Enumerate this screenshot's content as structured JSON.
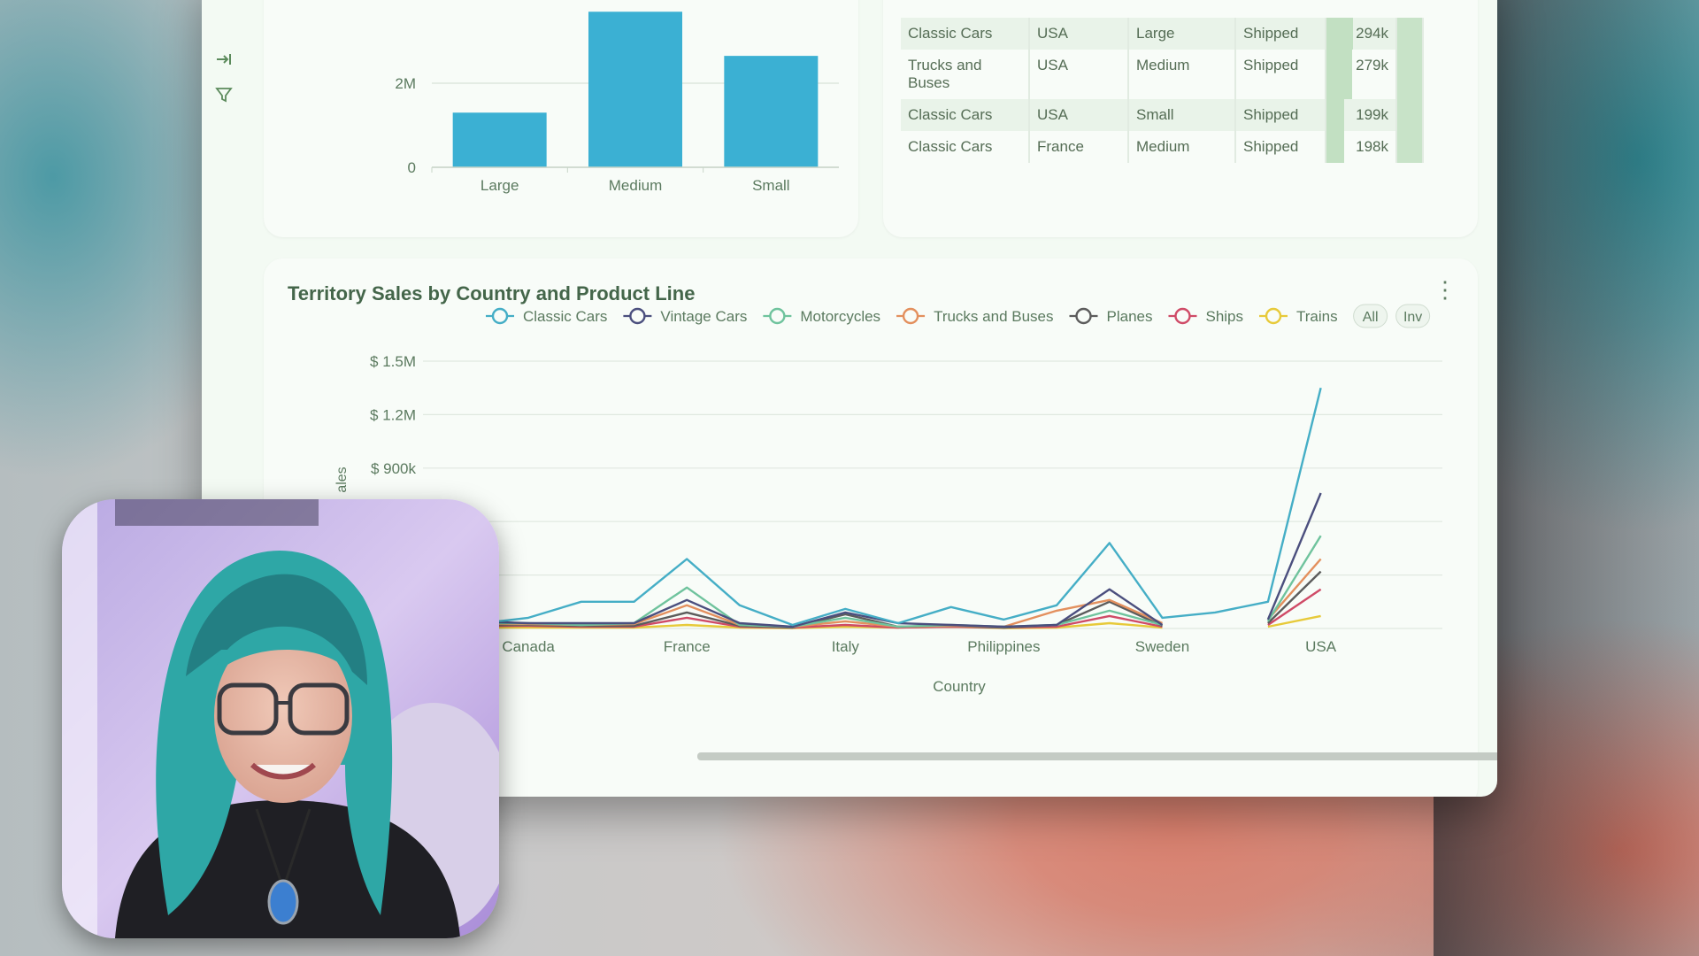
{
  "bar_chart": {
    "chart_data": {
      "type": "bar",
      "categories": [
        "Large",
        "Medium",
        "Small"
      ],
      "values": [
        1300000,
        3700000,
        2650000
      ],
      "yticks": [
        "0",
        "2M"
      ],
      "ylim": [
        0,
        4000000
      ],
      "color": "#3bb0d3"
    }
  },
  "table": {
    "rows": [
      {
        "product_line": "Classic Cars",
        "country": "USA",
        "deal_size": "Large",
        "status": "Shipped",
        "sales": "294k",
        "fill": 1.0
      },
      {
        "product_line": "Trucks and Buses",
        "country": "USA",
        "deal_size": "Medium",
        "status": "Shipped",
        "sales": "279k",
        "fill": 0.95
      },
      {
        "product_line": "Classic Cars",
        "country": "USA",
        "deal_size": "Small",
        "status": "Shipped",
        "sales": "199k",
        "fill": 0.68
      },
      {
        "product_line": "Classic Cars",
        "country": "France",
        "deal_size": "Medium",
        "status": "Shipped",
        "sales": "198k",
        "fill": 0.67
      }
    ]
  },
  "line_chart": {
    "title": "Territory Sales by Country and Product Line",
    "legend_buttons": [
      "All",
      "Inv"
    ],
    "chart_data": {
      "type": "line",
      "title": "Territory Sales by Country and Product Line",
      "xlabel": "Country",
      "ylabel": "ales",
      "ytick_labels": [
        "$ 1.5M",
        "$ 1.2M",
        "$ 900k"
      ],
      "ylim": [
        0,
        1500000
      ],
      "x_tick_labels": [
        "Canada",
        "France",
        "Italy",
        "Philippines",
        "Sweden",
        "USA"
      ],
      "n_countries": 19,
      "series": [
        {
          "name": "Classic Cars",
          "color": "#45aec6",
          "values": [
            120000,
            10000,
            25000,
            60000,
            150000,
            150000,
            390000,
            130000,
            20000,
            110000,
            30000,
            120000,
            50000,
            130000,
            480000,
            60000,
            90000,
            150000,
            1350000
          ]
        },
        {
          "name": "Vintage Cars",
          "color": "#4b4f7e",
          "values": [
            20000,
            30000,
            40000,
            30000,
            30000,
            30000,
            160000,
            30000,
            10000,
            90000,
            30000,
            20000,
            10000,
            20000,
            220000,
            20000,
            null,
            50000,
            760000
          ]
        },
        {
          "name": "Motorcycles",
          "color": "#6fc39d",
          "values": [
            10000,
            20000,
            30000,
            30000,
            20000,
            30000,
            230000,
            20000,
            10000,
            60000,
            10000,
            20000,
            10000,
            20000,
            100000,
            20000,
            null,
            40000,
            520000
          ]
        },
        {
          "name": "Trucks and Buses",
          "color": "#e3905e",
          "values": [
            15000,
            20000,
            25000,
            25000,
            20000,
            25000,
            130000,
            20000,
            10000,
            40000,
            10000,
            15000,
            10000,
            100000,
            160000,
            30000,
            null,
            50000,
            390000
          ]
        },
        {
          "name": "Planes",
          "color": "#5c5c5c",
          "values": [
            10000,
            15000,
            20000,
            20000,
            15000,
            15000,
            90000,
            15000,
            5000,
            80000,
            10000,
            15000,
            5000,
            20000,
            150000,
            15000,
            null,
            30000,
            320000
          ]
        },
        {
          "name": "Ships",
          "color": "#cf4b67",
          "values": [
            5000,
            10000,
            15000,
            15000,
            10000,
            10000,
            60000,
            10000,
            5000,
            20000,
            5000,
            10000,
            5000,
            10000,
            70000,
            10000,
            null,
            20000,
            220000
          ]
        },
        {
          "name": "Trains",
          "color": "#e7ca3a",
          "values": [
            2000,
            5000,
            5000,
            5000,
            5000,
            5000,
            20000,
            5000,
            2000,
            10000,
            5000,
            10000,
            2000,
            5000,
            30000,
            5000,
            null,
            10000,
            70000
          ]
        }
      ]
    }
  },
  "colors": {
    "accent": "#6aa873",
    "window_bg": "#f3faf3"
  },
  "icons": {
    "collapse": "collapse-right-icon",
    "filter": "filter-icon",
    "fab": "robot-icon"
  }
}
